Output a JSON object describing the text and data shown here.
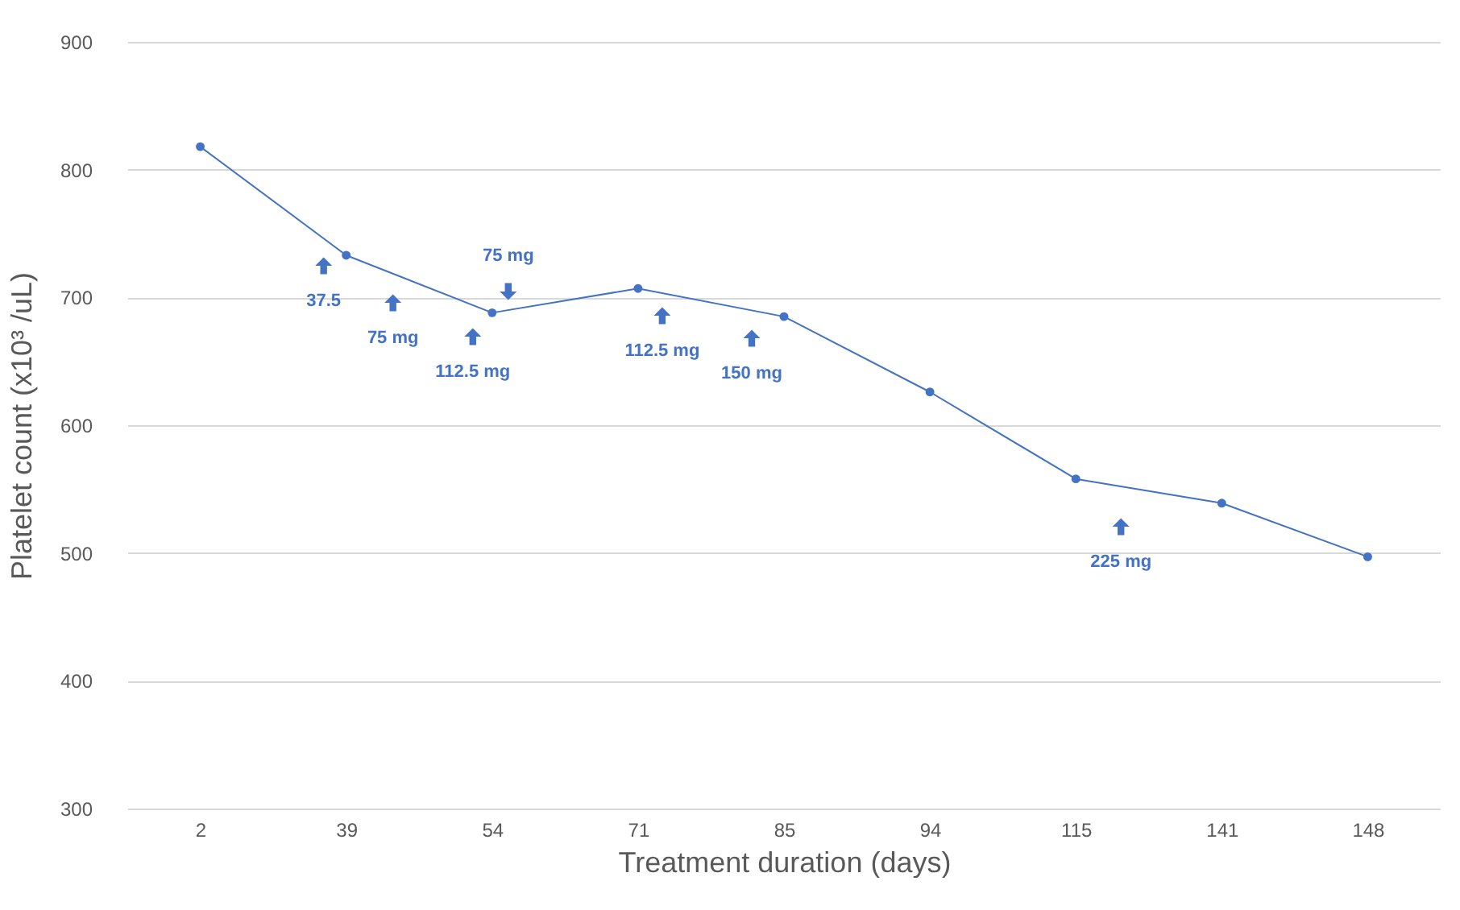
{
  "chart_data": {
    "type": "line",
    "xlabel": "Treatment duration (days)",
    "ylabel": "Platelet count (x10³ /uL)",
    "categories": [
      "2",
      "39",
      "54",
      "71",
      "85",
      "94",
      "115",
      "141",
      "148"
    ],
    "values": [
      818,
      733,
      688,
      707,
      685,
      626,
      558,
      539,
      497
    ],
    "color": "#4472c4",
    "ylim": [
      300,
      900
    ],
    "yticks": [
      300,
      400,
      500,
      600,
      700,
      800,
      900
    ],
    "grid": "y",
    "marker": "circle",
    "line_style": "solid",
    "annotations": [
      "37.5",
      "75 mg",
      "112.5 mg",
      "75 mg",
      "112.5 mg",
      "150 mg",
      "225 mg"
    ]
  }
}
